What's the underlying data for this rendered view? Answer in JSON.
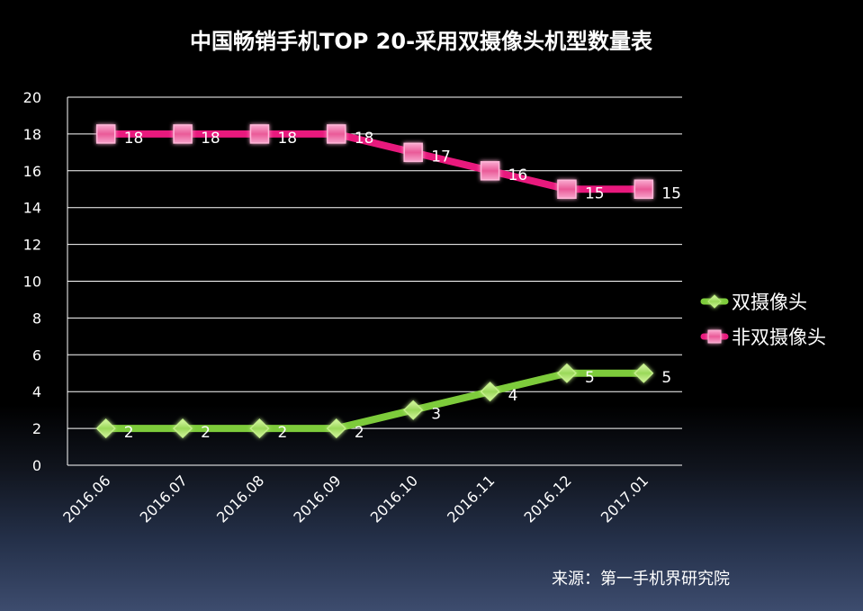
{
  "chart_data": {
    "type": "line",
    "title": "中国畅销手机TOP 20-采用双摄像头机型数量表",
    "categories": [
      "2016.06",
      "2016.07",
      "2016.08",
      "2016.09",
      "2016.10",
      "2016.11",
      "2016.12",
      "2017.01"
    ],
    "series": [
      {
        "name": "双摄像头",
        "values": [
          2,
          2,
          2,
          2,
          3,
          4,
          5,
          5
        ],
        "color": "#7dcb3b",
        "marker": "diamond"
      },
      {
        "name": "非双摄像头",
        "values": [
          18,
          18,
          18,
          18,
          17,
          16,
          15,
          15
        ],
        "color": "#e8197d",
        "marker": "square"
      }
    ],
    "yticks": [
      "0",
      "2",
      "4",
      "6",
      "8",
      "10",
      "12",
      "14",
      "16",
      "18",
      "20"
    ],
    "ylim": [
      0,
      20
    ],
    "xlabel": "",
    "ylabel": "",
    "grid": true,
    "legend": "right",
    "data_labels": true
  },
  "source": "来源：第一手机界研究院"
}
